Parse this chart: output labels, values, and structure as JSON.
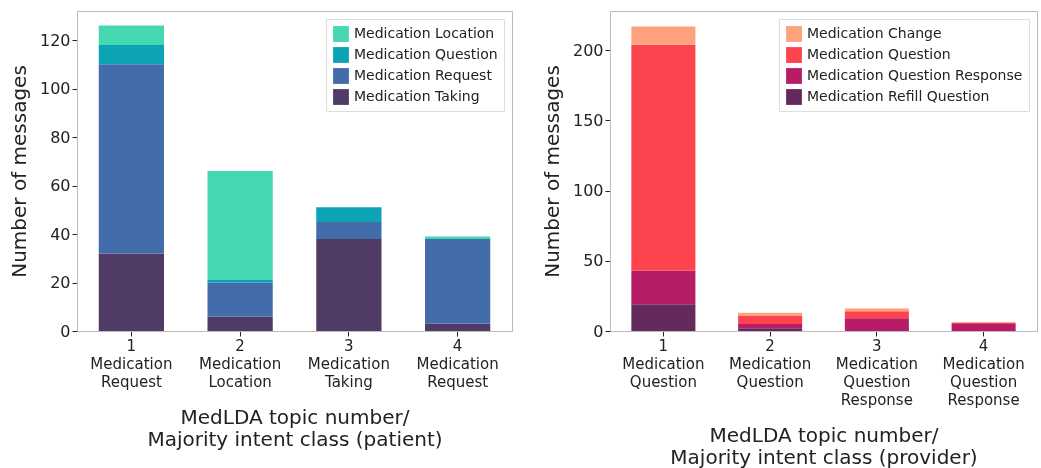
{
  "chart_data": [
    {
      "type": "bar",
      "stacked": true,
      "categories": [
        "1 Medication Request",
        "2 Medication Location",
        "3 Medication Taking",
        "4 Medication Request"
      ],
      "xlabel": "MedLDA topic number/\nMajority intent class (patient)",
      "ylabel": "Number of messages",
      "ylim": [
        0,
        132
      ],
      "yticks": [
        0,
        20,
        40,
        60,
        80,
        100,
        120
      ],
      "grid": false,
      "legend": "top right",
      "series": [
        {
          "name": "Medication Taking",
          "color": "#4f3b66",
          "values": [
            32,
            6,
            38,
            3
          ]
        },
        {
          "name": "Medication Request",
          "color": "#436caa",
          "values": [
            78,
            14,
            7,
            35
          ]
        },
        {
          "name": "Medication Question",
          "color": "#0ca4b4",
          "values": [
            8,
            1,
            6,
            0
          ]
        },
        {
          "name": "Medication Location",
          "color": "#44d7b1",
          "values": [
            8,
            45,
            0,
            1
          ]
        }
      ]
    },
    {
      "type": "bar",
      "stacked": true,
      "categories": [
        "1 Medication Question",
        "2 Medication Question",
        "3 Medication Question Response",
        "4 Medication Question Response"
      ],
      "xlabel": "MedLDA topic number/\nMajority intent class (provider)",
      "ylabel": "Number of messages",
      "ylim": [
        0,
        228
      ],
      "yticks": [
        0,
        50,
        100,
        150,
        200
      ],
      "grid": false,
      "legend": "top right",
      "series": [
        {
          "name": "Medication Refill Question",
          "color": "#652a5d",
          "values": [
            19,
            2,
            0,
            0
          ]
        },
        {
          "name": "Medication Question Response",
          "color": "#b61d66",
          "values": [
            24,
            3,
            9,
            5
          ]
        },
        {
          "name": "Medication Question",
          "color": "#fd434e",
          "values": [
            161,
            6,
            5,
            1
          ]
        },
        {
          "name": "Medication Change",
          "color": "#fda27a",
          "values": [
            13,
            2,
            2,
            0
          ]
        }
      ]
    }
  ]
}
